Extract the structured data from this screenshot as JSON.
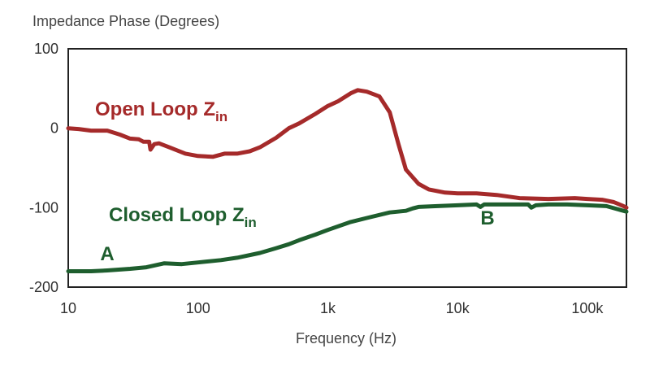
{
  "chart_data": {
    "type": "line",
    "ylabel": "Impedance Phase (Degrees)",
    "xlabel": "Frequency (Hz)",
    "x_scale": "log",
    "xlim": [
      10,
      200000
    ],
    "ylim": [
      -200,
      100
    ],
    "x_ticks": [
      {
        "value": 10,
        "label": "10"
      },
      {
        "value": 100,
        "label": "100"
      },
      {
        "value": 1000,
        "label": "1k"
      },
      {
        "value": 10000,
        "label": "10k"
      },
      {
        "value": 100000,
        "label": "100k"
      }
    ],
    "y_ticks": [
      {
        "value": 100,
        "label": "100"
      },
      {
        "value": 0,
        "label": "0"
      },
      {
        "value": -100,
        "label": "-100"
      },
      {
        "value": -200,
        "label": "-200"
      }
    ],
    "grid": false,
    "series": [
      {
        "name": "Open Loop Z",
        "name_subscript": "in",
        "color": "#a52a2a",
        "points": [
          [
            10,
            0
          ],
          [
            12,
            -1
          ],
          [
            15,
            -3
          ],
          [
            20,
            -3
          ],
          [
            25,
            -8
          ],
          [
            30,
            -13
          ],
          [
            35,
            -14
          ],
          [
            38,
            -17
          ],
          [
            42,
            -17
          ],
          [
            43,
            -27
          ],
          [
            46,
            -20
          ],
          [
            50,
            -19
          ],
          [
            60,
            -24
          ],
          [
            80,
            -32
          ],
          [
            100,
            -35
          ],
          [
            130,
            -36
          ],
          [
            160,
            -32
          ],
          [
            200,
            -32
          ],
          [
            250,
            -29
          ],
          [
            300,
            -24
          ],
          [
            400,
            -12
          ],
          [
            500,
            0
          ],
          [
            600,
            6
          ],
          [
            800,
            18
          ],
          [
            1000,
            28
          ],
          [
            1200,
            34
          ],
          [
            1500,
            44
          ],
          [
            1700,
            48
          ],
          [
            2000,
            46
          ],
          [
            2500,
            40
          ],
          [
            3000,
            20
          ],
          [
            3500,
            -20
          ],
          [
            4000,
            -52
          ],
          [
            5000,
            -70
          ],
          [
            6000,
            -77
          ],
          [
            8000,
            -81
          ],
          [
            10000,
            -82
          ],
          [
            14000,
            -82
          ],
          [
            20000,
            -84
          ],
          [
            30000,
            -88
          ],
          [
            50000,
            -89
          ],
          [
            80000,
            -88
          ],
          [
            100000,
            -89
          ],
          [
            130000,
            -90
          ],
          [
            160000,
            -93
          ],
          [
            190000,
            -98
          ],
          [
            200000,
            -100
          ]
        ]
      },
      {
        "name": "Closed Loop Z",
        "name_subscript": "in",
        "color": "#1e5e2e",
        "points": [
          [
            10,
            -180
          ],
          [
            15,
            -180
          ],
          [
            20,
            -179
          ],
          [
            30,
            -177
          ],
          [
            40,
            -175
          ],
          [
            55,
            -170
          ],
          [
            75,
            -171
          ],
          [
            100,
            -169
          ],
          [
            150,
            -166
          ],
          [
            200,
            -163
          ],
          [
            300,
            -157
          ],
          [
            400,
            -151
          ],
          [
            500,
            -146
          ],
          [
            600,
            -141
          ],
          [
            800,
            -134
          ],
          [
            1000,
            -128
          ],
          [
            1500,
            -118
          ],
          [
            2000,
            -113
          ],
          [
            3000,
            -106
          ],
          [
            4000,
            -104
          ],
          [
            4500,
            -101
          ],
          [
            5000,
            -99
          ],
          [
            7000,
            -98
          ],
          [
            10000,
            -97
          ],
          [
            14000,
            -96
          ],
          [
            15000,
            -99
          ],
          [
            16000,
            -96
          ],
          [
            20000,
            -96
          ],
          [
            30000,
            -96
          ],
          [
            35000,
            -96
          ],
          [
            37000,
            -100
          ],
          [
            40000,
            -97
          ],
          [
            50000,
            -96
          ],
          [
            70000,
            -96
          ],
          [
            100000,
            -97
          ],
          [
            140000,
            -98
          ],
          [
            200000,
            -105
          ]
        ]
      }
    ],
    "annotations": [
      {
        "text": "A",
        "x": 20,
        "y": -158,
        "color": "#1e5e2e"
      },
      {
        "text": "B",
        "x": 17000,
        "y": -113,
        "color": "#1e5e2e"
      }
    ]
  }
}
